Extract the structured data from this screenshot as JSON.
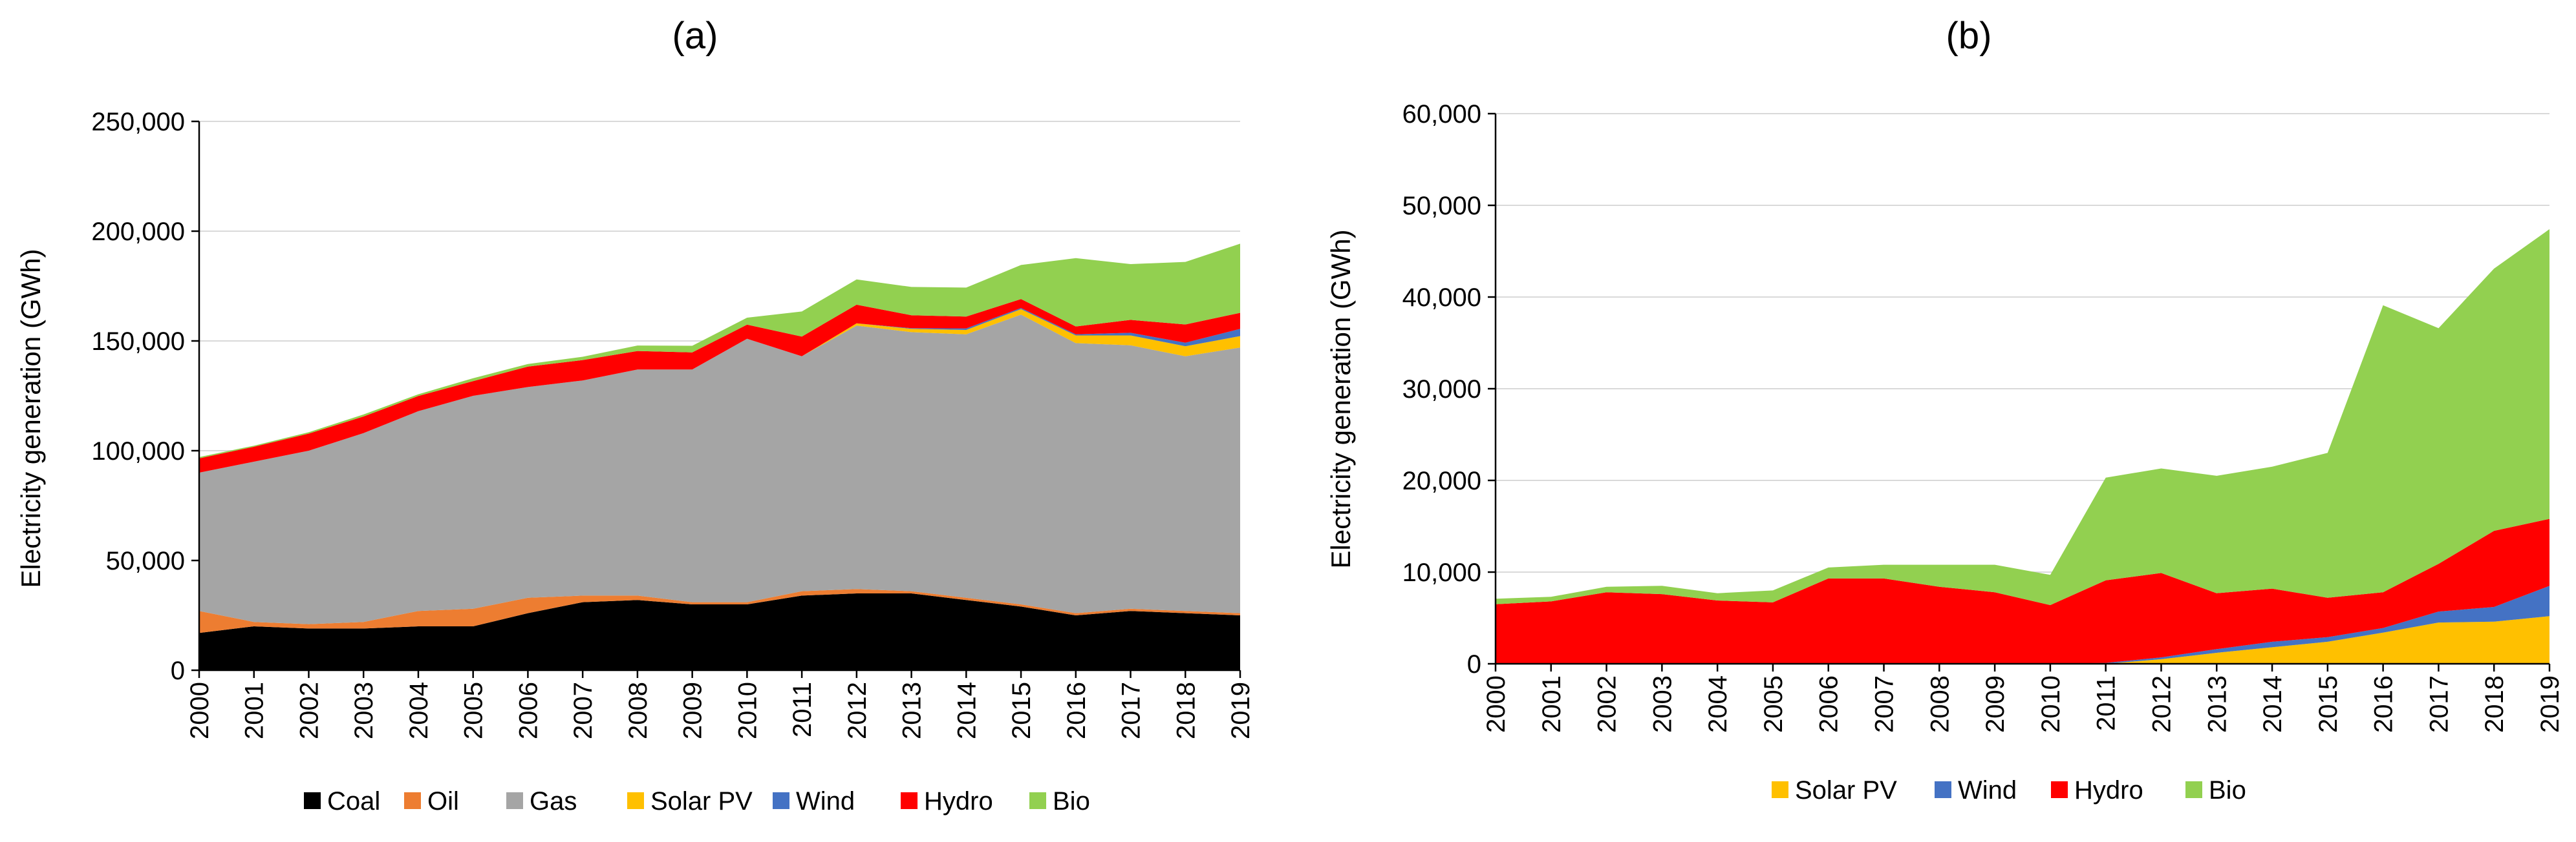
{
  "chart_data": [
    {
      "type": "area",
      "stacked": true,
      "title": "(a)",
      "xlabel": "",
      "ylabel": "Electricity generation (GWh)",
      "ylim": [
        0,
        250000
      ],
      "yticks": [
        0,
        50000,
        100000,
        150000,
        200000,
        250000
      ],
      "ytick_labels": [
        "0",
        "50,000",
        "100,000",
        "150,000",
        "200,000",
        "250,000"
      ],
      "x": [
        "2000",
        "2001",
        "2002",
        "2003",
        "2004",
        "2005",
        "2006",
        "2007",
        "2008",
        "2009",
        "2010",
        "2011",
        "2012",
        "2013",
        "2014",
        "2015",
        "2016",
        "2017",
        "2018",
        "2019"
      ],
      "grid": true,
      "legend_position": "bottom",
      "series": [
        {
          "name": "Coal",
          "color": "#000000",
          "values": [
            17000,
            20000,
            19000,
            19000,
            20000,
            20000,
            26000,
            31000,
            32000,
            30000,
            30000,
            34000,
            35000,
            35000,
            32000,
            29000,
            25000,
            27000,
            26000,
            25000
          ]
        },
        {
          "name": "Oil",
          "color": "#ED7D31",
          "values": [
            10000,
            2000,
            2000,
            3000,
            7000,
            8000,
            7000,
            3000,
            2000,
            1000,
            1000,
            2000,
            2000,
            1000,
            1000,
            1000,
            1000,
            1000,
            1000,
            1000
          ]
        },
        {
          "name": "Gas",
          "color": "#A5A5A5",
          "values": [
            63000,
            73000,
            79000,
            86000,
            91000,
            97000,
            96000,
            98000,
            103000,
            106000,
            120000,
            107000,
            120000,
            118000,
            120000,
            132000,
            123000,
            120000,
            116000,
            121000
          ]
        },
        {
          "name": "Solar PV",
          "color": "#FFC000",
          "values": [
            0,
            0,
            0,
            0,
            0,
            0,
            0,
            0,
            0,
            0,
            0,
            0,
            1000,
            1500,
            2000,
            2500,
            3500,
            4500,
            4600,
            5200
          ]
        },
        {
          "name": "Wind",
          "color": "#4472C4",
          "values": [
            0,
            0,
            0,
            0,
            0,
            0,
            0,
            0,
            0,
            0,
            0,
            0,
            0,
            300,
            700,
            500,
            500,
            1200,
            1600,
            3300
          ]
        },
        {
          "name": "Hydro",
          "color": "#FF0000",
          "values": [
            6500,
            6800,
            7800,
            7600,
            6900,
            6700,
            9300,
            9300,
            8400,
            7800,
            6400,
            9000,
            8500,
            5900,
            5400,
            4100,
            3600,
            5900,
            8300,
            7300
          ]
        },
        {
          "name": "Bio",
          "color": "#92D050",
          "values": [
            600,
            500,
            600,
            900,
            800,
            1300,
            1200,
            1500,
            2500,
            3000,
            3200,
            11400,
            11500,
            12900,
            13200,
            15500,
            31100,
            25400,
            28500,
            31500
          ]
        }
      ]
    },
    {
      "type": "area",
      "stacked": true,
      "title": "(b)",
      "xlabel": "",
      "ylabel": "Electricity generation (GWh)",
      "ylim": [
        0,
        60000
      ],
      "yticks": [
        0,
        10000,
        20000,
        30000,
        40000,
        50000,
        60000
      ],
      "ytick_labels": [
        "0",
        "10,000",
        "20,000",
        "30,000",
        "40,000",
        "50,000",
        "60,000"
      ],
      "x": [
        "2000",
        "2001",
        "2002",
        "2003",
        "2004",
        "2005",
        "2006",
        "2007",
        "2008",
        "2009",
        "2010",
        "2011",
        "2012",
        "2013",
        "2014",
        "2015",
        "2016",
        "2017",
        "2018",
        "2019"
      ],
      "grid": true,
      "legend_position": "bottom",
      "series": [
        {
          "name": "Solar PV",
          "color": "#FFC000",
          "values": [
            0,
            0,
            0,
            0,
            0,
            0,
            0,
            0,
            0,
            0,
            0,
            0,
            500,
            1200,
            1800,
            2400,
            3400,
            4500,
            4600,
            5200
          ]
        },
        {
          "name": "Wind",
          "color": "#4472C4",
          "values": [
            0,
            0,
            0,
            0,
            0,
            0,
            0,
            0,
            0,
            0,
            0,
            100,
            200,
            400,
            600,
            500,
            500,
            1200,
            1600,
            3300
          ]
        },
        {
          "name": "Hydro",
          "color": "#FF0000",
          "values": [
            6500,
            6800,
            7800,
            7600,
            6900,
            6700,
            9300,
            9300,
            8400,
            7800,
            6400,
            9000,
            9200,
            6100,
            5800,
            4300,
            3900,
            5200,
            8300,
            7300
          ]
        },
        {
          "name": "Bio",
          "color": "#92D050",
          "values": [
            600,
            500,
            600,
            900,
            800,
            1300,
            1200,
            1500,
            2400,
            3000,
            3300,
            11200,
            11400,
            12800,
            13300,
            15800,
            31300,
            25700,
            28600,
            31600
          ]
        }
      ]
    }
  ]
}
